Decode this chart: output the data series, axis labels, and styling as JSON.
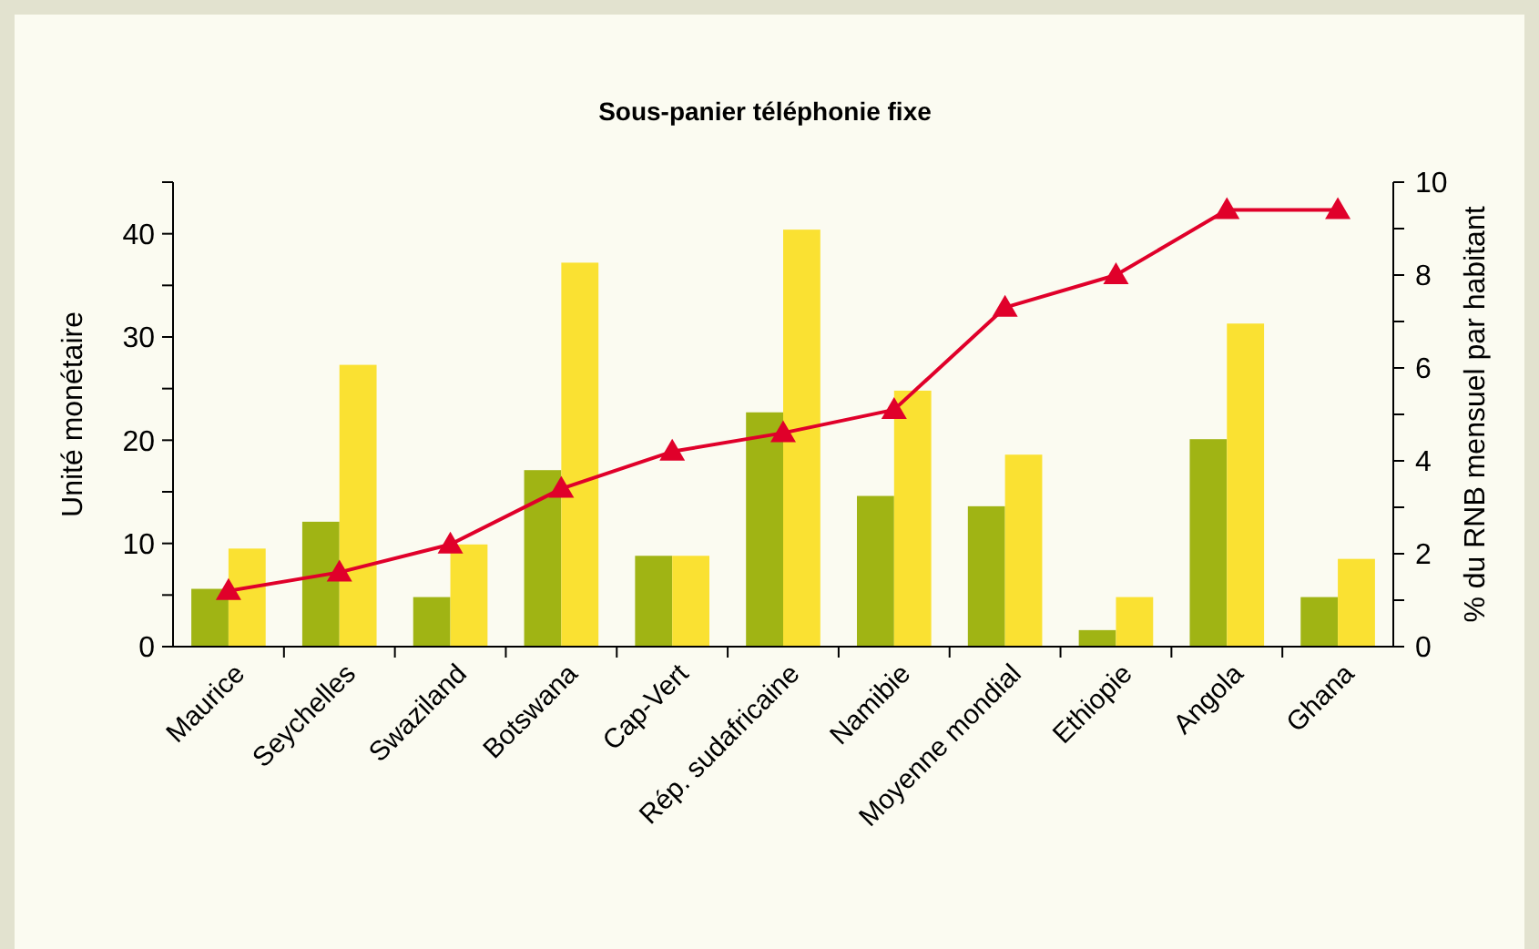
{
  "chart_data": {
    "type": "bar",
    "title": "Sous-panier téléphonie fixe",
    "ylabel": "Unité monétaire",
    "y2label": "% du RNB mensuel par habitant",
    "categories": [
      "Maurice",
      "Seychelles",
      "Swaziland",
      "Botswana",
      "Cap-Vert",
      "Rép. sudafricaine",
      "Namibie",
      "Moyenne mondial",
      "Ethiopie",
      "Angola",
      "Ghana"
    ],
    "series": [
      {
        "color": "#a0b414",
        "values": [
          5.6,
          12.1,
          4.8,
          17.1,
          8.8,
          22.7,
          14.6,
          13.6,
          1.6,
          20.1,
          4.8
        ]
      },
      {
        "color": "#fae132",
        "values": [
          9.5,
          27.3,
          9.9,
          37.2,
          8.8,
          40.4,
          24.8,
          18.6,
          4.8,
          31.3,
          8.5
        ]
      },
      {
        "type": "line",
        "axis": "y2",
        "color": "#e0002a",
        "marker": "triangle",
        "values": [
          1.2,
          1.6,
          2.2,
          3.4,
          4.2,
          4.6,
          5.1,
          7.3,
          8.0,
          9.4,
          9.4
        ]
      }
    ],
    "ylim": [
      0,
      45
    ],
    "yticks": [
      0,
      {
        "value": 5,
        "label": null
      },
      10,
      {
        "value": 15,
        "label": null
      },
      20,
      {
        "value": 25,
        "label": null
      },
      30,
      {
        "value": 35,
        "label": null
      },
      40,
      {
        "value": 45,
        "label": null
      }
    ],
    "y2lim": [
      0,
      10
    ],
    "y2ticks": [
      0,
      {
        "value": 1,
        "label": null
      },
      2,
      {
        "value": 3,
        "label": null
      },
      4,
      {
        "value": 5,
        "label": null
      },
      6,
      {
        "value": 7,
        "label": null
      },
      8,
      {
        "value": 9,
        "label": null
      },
      10
    ],
    "grid": false
  }
}
